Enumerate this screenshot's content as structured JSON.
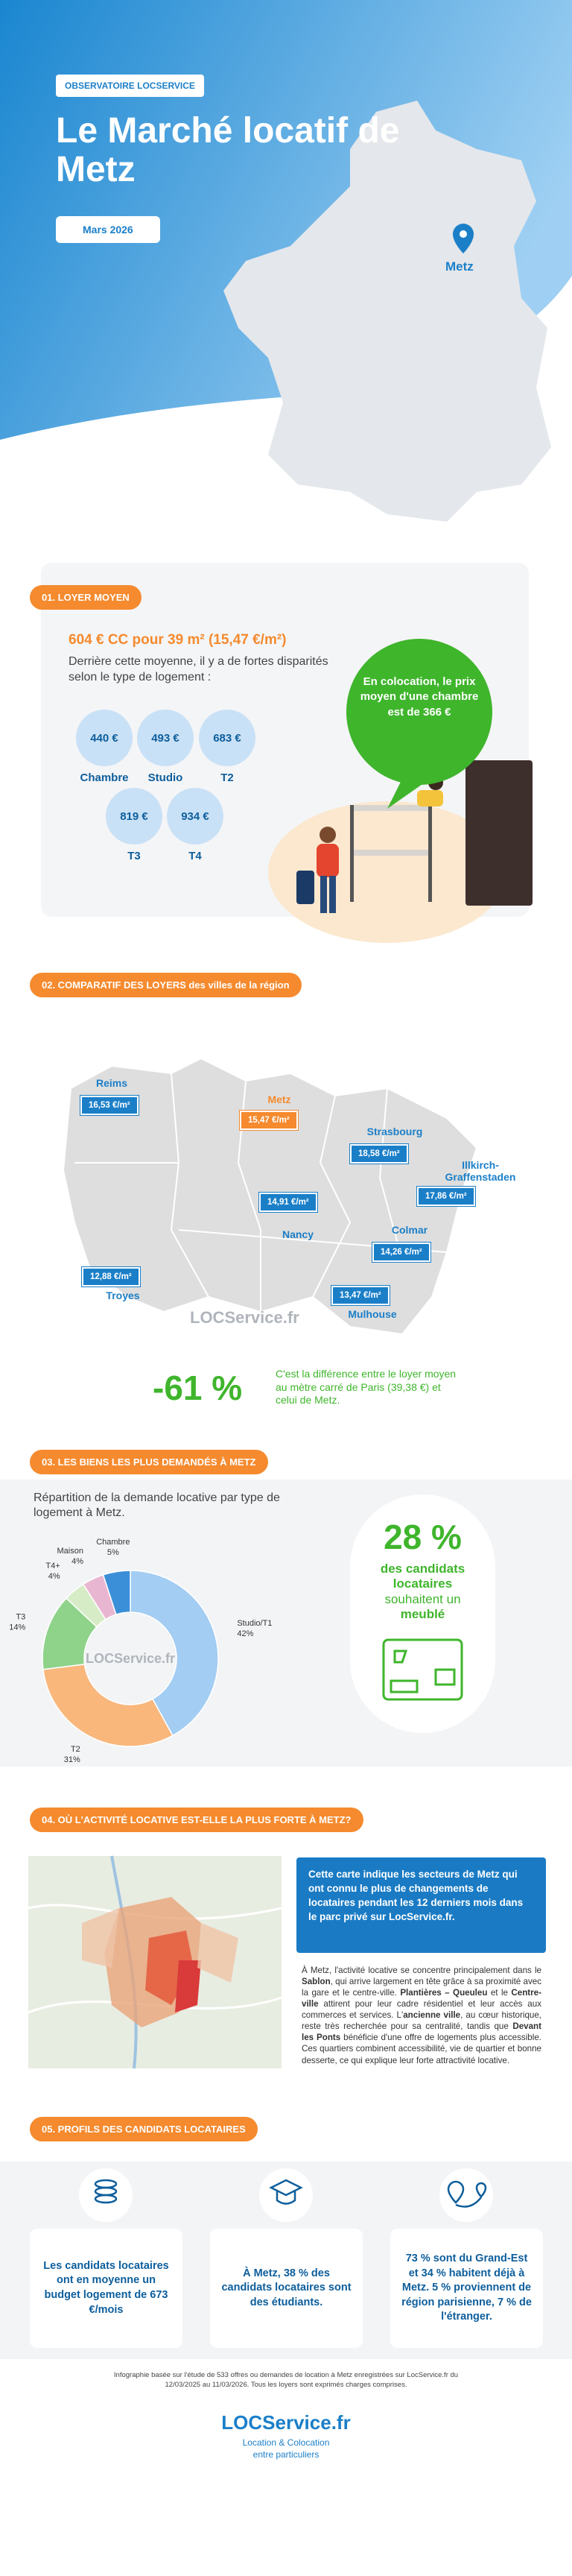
{
  "header": {
    "badge": "OBSERVATOIRE LOCSERVICE",
    "title": "Le Marché locatif de Metz",
    "date": "Mars 2026",
    "city": "Metz"
  },
  "loyer_moyen": {
    "label": "01. LOYER MOYEN",
    "headline": "604 € CC pour 39 m² (15,47 €/m²)",
    "description": "Derrière cette moyenne, il y a de fortes disparités selon le type de logement :",
    "types": [
      {
        "price": "440 €",
        "label": "Chambre"
      },
      {
        "price": "493 €",
        "label": "Studio"
      },
      {
        "price": "683 €",
        "label": "T2"
      },
      {
        "price": "819 €",
        "label": "T3"
      },
      {
        "price": "934 €",
        "label": "T4"
      }
    ],
    "colocation": "En colocation, le prix moyen d'une chambre est de 366 €"
  },
  "comparatif": {
    "label": "02. COMPARATIF DES LOYERS des villes de la région",
    "cities": [
      {
        "name": "Reims",
        "price": "16,53 €/m²",
        "color": "#1b7fc8"
      },
      {
        "name": "Metz",
        "price": "15,47 €/m²",
        "color": "#f58a2e"
      },
      {
        "name": "Strasbourg",
        "price": "18,58 €/m²",
        "color": "#1b7fc8"
      },
      {
        "name": "Illkirch-Graffenstaden",
        "price": "17,86 €/m²",
        "color": "#1b7fc8"
      },
      {
        "name": "Nancy",
        "price": "14,91 €/m²",
        "color": "#1b7fc8"
      },
      {
        "name": "Colmar",
        "price": "14,26 €/m²",
        "color": "#1b7fc8"
      },
      {
        "name": "Troyes",
        "price": "12,88 €/m²",
        "color": "#1b7fc8"
      },
      {
        "name": "Mulhouse",
        "price": "13,47 €/m²",
        "color": "#1b7fc8"
      }
    ],
    "difference": "-61 %",
    "difference_text": "C'est la différence entre le loyer moyen au mètre carré de Paris (39,38 €) et celui de Metz."
  },
  "brand": "LOCService.fr",
  "biens": {
    "label": "03. LES BIENS LES PLUS DEMANDÉS À METZ",
    "stat": "28 %",
    "stat_text": [
      "des candidats locataires",
      "souhaitent un",
      "meublé"
    ]
  },
  "chart_data": {
    "type": "pie",
    "title": "Répartition de la demande locative par type de logement à Metz.",
    "categories": [
      "Studio/T1",
      "T2",
      "T3",
      "T4+",
      "Maison",
      "Chambre"
    ],
    "values": [
      42,
      31,
      14,
      4,
      4,
      5
    ],
    "value_labels": [
      "42%",
      "31%",
      "14%",
      "4%",
      "4%",
      "5%"
    ],
    "colors": [
      "#a3cdf2",
      "#f9b77c",
      "#8fd38a",
      "#d6ecc6",
      "#e9b6d2",
      "#3b8fd8"
    ],
    "donut": true
  },
  "activite": {
    "label": "04. OÙ L'ACTIVITÉ LOCATIVE EST-ELLE LA PLUS FORTE À METZ?",
    "box": "Cette carte indique les secteurs de Metz qui ont connu le plus de changements de locataires pendant les 12 derniers mois dans le parc privé sur LocService.fr.",
    "paragraph": [
      "À Metz, l'activité locative se concentre principalement dans le ",
      "Sablon",
      ", qui arrive largement en tête grâce à sa proximité avec la gare et le centre-ville. ",
      "Plantières – Queuleu",
      " et le ",
      "Centre-ville",
      " attirent pour leur cadre résidentiel et leur accès aux commerces et services. L'",
      "ancienne ville",
      ", au cœur historique, reste très recherchée pour sa centralité, tandis que ",
      "Devant les Ponts",
      " bénéficie d'une offre de logements plus accessible. Ces quartiers combinent accessibilité, vie de quartier et bonne desserte, ce qui explique leur forte attractivité locative."
    ]
  },
  "profils": {
    "label": "05. PROFILS DES CANDIDATS LOCATAIRES",
    "cards": [
      "Les candidats locataires ont en moyenne un budget logement de 673 €/mois",
      "À Metz, 38 % des candidats locataires sont des étudiants.",
      "73 % sont du Grand-Est et 34 % habitent déjà à Metz. 5 % proviennent de région parisienne, 7 % de l'étranger."
    ]
  },
  "footer": {
    "note": "Infographie basée sur l'étude de 533 offres ou demandes de location à Metz enregistrées sur LocService.fr du 12/03/2025 au 11/03/2026. Tous les loyers sont exprimés charges comprises.",
    "tagline": [
      "Location & Colocation",
      "entre particuliers"
    ]
  }
}
